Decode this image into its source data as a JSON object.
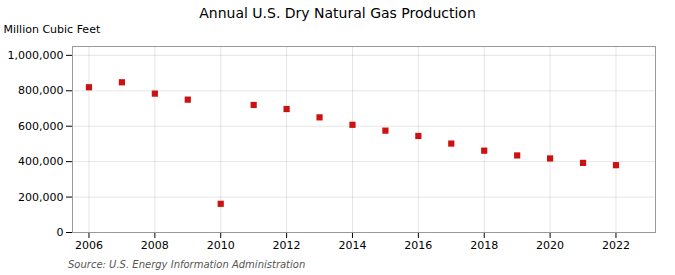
{
  "chart_data": {
    "type": "scatter",
    "title": "Annual U.S. Dry Natural Gas Production",
    "ylabel": "Million Cubic Feet",
    "source": "Source: U.S. Energy Information Administration",
    "x": [
      2006,
      2007,
      2008,
      2009,
      2010,
      2011,
      2012,
      2013,
      2014,
      2015,
      2016,
      2017,
      2018,
      2019,
      2020,
      2021,
      2022
    ],
    "values": [
      820000,
      848000,
      784000,
      750000,
      162000,
      720000,
      697000,
      650000,
      608000,
      575000,
      545000,
      502000,
      462000,
      435000,
      418000,
      393000,
      380000
    ],
    "color": "#cc1111",
    "marker": "square",
    "xlim": [
      2005.5,
      2023.2
    ],
    "ylim": [
      0,
      1050000
    ],
    "xticks": [
      2006,
      2008,
      2010,
      2012,
      2014,
      2016,
      2018,
      2020,
      2022
    ],
    "yticks": [
      0,
      {
        "value": 200000,
        "label": "200,000"
      },
      {
        "value": 400000,
        "label": "400,000"
      },
      {
        "value": 600000,
        "label": "600,000"
      },
      {
        "value": 800000,
        "label": "800,000"
      },
      {
        "value": 1000000,
        "label": "1,000,000"
      }
    ],
    "grid": true
  }
}
